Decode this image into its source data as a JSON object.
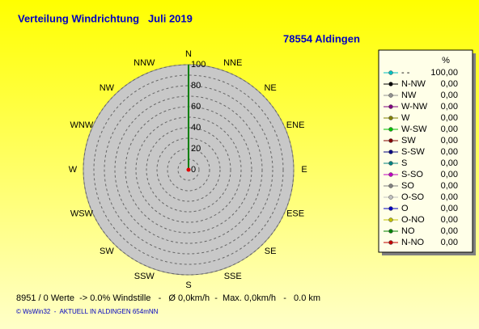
{
  "chart_data": {
    "type": "polar",
    "title": "Verteilung Windrichtung   Juli 2019",
    "subtitle": "78554 Aldingen",
    "directions": [
      "N",
      "NNE",
      "NE",
      "ENE",
      "E",
      "ESE",
      "SE",
      "SSE",
      "S",
      "SSW",
      "SW",
      "WSW",
      "W",
      "WNW",
      "NW",
      "NNW"
    ],
    "values": [
      100,
      0,
      0,
      0,
      0,
      0,
      0,
      0,
      0,
      0,
      0,
      0,
      0,
      0,
      0,
      0
    ],
    "color": "#008000",
    "center_color": "#e00000",
    "rlim": [
      0,
      100
    ],
    "rticks": [
      0,
      20,
      40,
      60,
      80,
      100
    ],
    "rgrid": [
      10,
      20,
      30,
      40,
      50,
      60,
      70,
      80,
      90,
      100
    ],
    "legend_header": "%",
    "series": [
      {
        "name": "- -",
        "color": "#00c0c0",
        "values": [
          100
        ],
        "value_labels": [
          "100,00"
        ]
      },
      {
        "name": "N-NW",
        "color": "#000000",
        "values": [
          0
        ],
        "value_labels": [
          "0,00"
        ]
      },
      {
        "name": "NW",
        "color": "#909090",
        "values": [
          0
        ],
        "value_labels": [
          "0,00"
        ]
      },
      {
        "name": "W-NW",
        "color": "#800080",
        "values": [
          0
        ],
        "value_labels": [
          "0,00"
        ]
      },
      {
        "name": "W",
        "color": "#808000",
        "values": [
          0
        ],
        "value_labels": [
          "0,00"
        ]
      },
      {
        "name": "W-SW",
        "color": "#00c000",
        "values": [
          0
        ],
        "value_labels": [
          "0,00"
        ]
      },
      {
        "name": "SW",
        "color": "#800000",
        "values": [
          0
        ],
        "value_labels": [
          "0,00"
        ]
      },
      {
        "name": "S-SW",
        "color": "#000080",
        "values": [
          0
        ],
        "value_labels": [
          "0,00"
        ]
      },
      {
        "name": "S",
        "color": "#008080",
        "values": [
          0
        ],
        "value_labels": [
          "0,00"
        ]
      },
      {
        "name": "S-SO",
        "color": "#c000c0",
        "values": [
          0
        ],
        "value_labels": [
          "0,00"
        ]
      },
      {
        "name": "SO",
        "color": "#808080",
        "values": [
          0
        ],
        "value_labels": [
          "0,00"
        ]
      },
      {
        "name": "O-SO",
        "color": "#c0c0c0",
        "values": [
          0
        ],
        "value_labels": [
          "0,00"
        ]
      },
      {
        "name": "O",
        "color": "#0000c0",
        "values": [
          0
        ],
        "value_labels": [
          "0,00"
        ]
      },
      {
        "name": "O-NO",
        "color": "#c0c000",
        "values": [
          0
        ],
        "value_labels": [
          "0,00"
        ]
      },
      {
        "name": "NO",
        "color": "#008000",
        "values": [
          0
        ],
        "value_labels": [
          "0,00"
        ]
      },
      {
        "name": "N-NO",
        "color": "#c00000",
        "values": [
          0
        ],
        "value_labels": [
          "0,00"
        ]
      }
    ],
    "stats": "8951 / 0 Werte  -> 0.0% Windstille   -   Ø 0,0km/h  -  Max. 0,0km/h   -   0.0 km",
    "footer": "© WsWin32  -  AKTUELL IN ALDINGEN 654mNN"
  }
}
